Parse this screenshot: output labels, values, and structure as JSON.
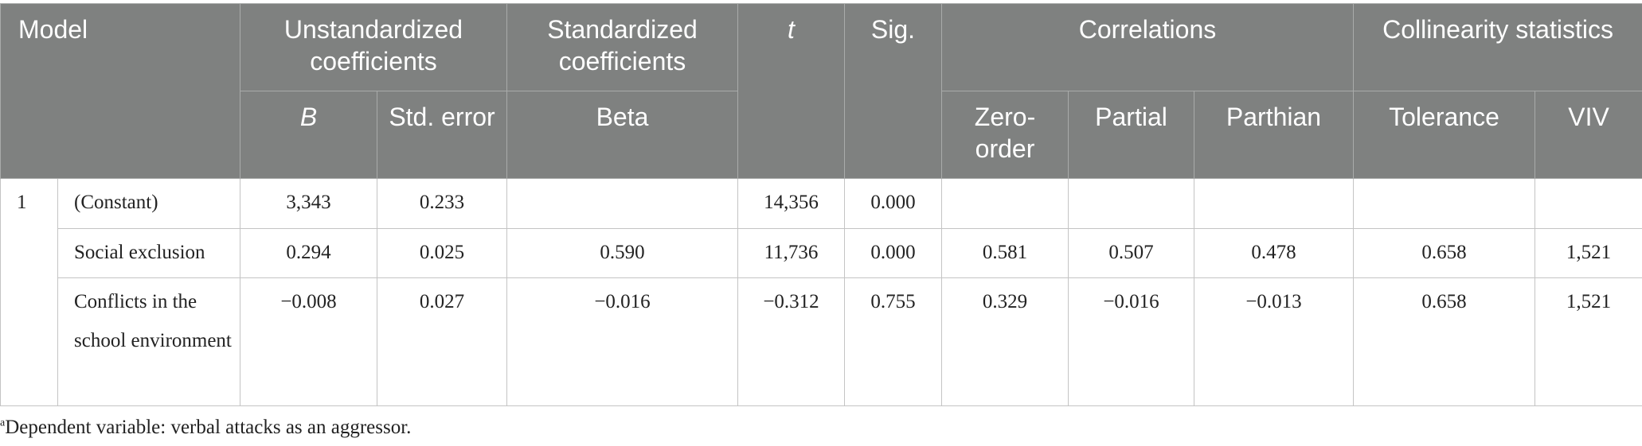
{
  "table": {
    "header_top": [
      "Model",
      "Unstandardized coefficients",
      "Standardized coefficients",
      "t",
      "Sig.",
      "Correlations",
      "Collinearity statistics"
    ],
    "header_sub": [
      "B",
      "Std. error",
      "Beta",
      "Zero-order",
      "Partial",
      "Parthian",
      "Tolerance",
      "VIV"
    ],
    "rows": [
      {
        "model": "1",
        "label": "(Constant)",
        "cells": [
          "3,343",
          "0.233",
          null,
          "14,356",
          "0.000",
          null,
          null,
          null,
          null,
          null
        ]
      },
      {
        "label": "Social exclusion",
        "cells": [
          "0.294",
          "0.025",
          "0.590",
          "11,736",
          "0.000",
          "0.581",
          "0.507",
          "0.478",
          "0.658",
          "1,521"
        ]
      },
      {
        "label": "Conflicts in the school environment",
        "cells": [
          "−0.008",
          "0.027",
          "−0.016",
          "−0.312",
          "0.755",
          "0.329",
          "−0.016",
          "−0.013",
          "0.658",
          "1,521"
        ]
      }
    ]
  },
  "footnote": {
    "marker": "a",
    "text": "Dependent variable: verbal attacks as an aggressor."
  }
}
